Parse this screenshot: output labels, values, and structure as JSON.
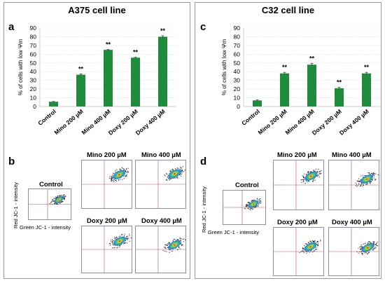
{
  "panels": [
    {
      "title": "A375 cell line",
      "chart_label": "a",
      "flow_label": "b"
    },
    {
      "title": "C32 cell line",
      "chart_label": "c",
      "flow_label": "d"
    }
  ],
  "chart_data": [
    {
      "type": "bar",
      "title": "A375 cell line",
      "xlabel": "",
      "ylabel": "% of cells with low Ψm",
      "categories": [
        "Control",
        "Mino 200 µM",
        "Mino 400 µM",
        "Doxy 200 µM",
        "Doxy 400 µM"
      ],
      "values": [
        5.5,
        36.5,
        65,
        56,
        80
      ],
      "errors": [
        0.3,
        1,
        0.6,
        0.6,
        1.2
      ],
      "significance": [
        "",
        "**",
        "**",
        "**",
        "**"
      ],
      "ylim": [
        0,
        90
      ],
      "yticks": [
        0,
        10,
        20,
        30,
        40,
        50,
        60,
        70,
        80,
        90
      ],
      "grid": true,
      "color": "#1e8c3a"
    },
    {
      "type": "bar",
      "title": "C32 cell line",
      "xlabel": "",
      "ylabel": "% of cells with low Ψm",
      "categories": [
        "Control",
        "Mino 200 µM",
        "Mino 400 µM",
        "Doxy 200 µM",
        "Doxy 400 µM"
      ],
      "values": [
        7,
        38,
        48,
        21,
        38
      ],
      "errors": [
        0.5,
        1.2,
        1.5,
        1,
        1.2
      ],
      "significance": [
        "",
        "**",
        "**",
        "**",
        "**"
      ],
      "ylim": [
        0,
        90
      ],
      "yticks": [
        0,
        10,
        20,
        30,
        40,
        50,
        60,
        70,
        80,
        90
      ],
      "grid": true,
      "color": "#1e8c3a"
    }
  ],
  "flow": {
    "y_label": "Red JC-1 - intensity",
    "x_label": "Green JC-1 - intensity",
    "left": [
      {
        "title": "Control"
      },
      {
        "title": "Mino 200 µM"
      },
      {
        "title": "Mino 400 µM"
      },
      {
        "title": "Doxy 200 µM"
      },
      {
        "title": "Doxy 400 µM"
      }
    ],
    "right": [
      {
        "title": "Control"
      },
      {
        "title": "Mino 200 µM"
      },
      {
        "title": "Mino 400 µM"
      },
      {
        "title": "Doxy 200 µM"
      },
      {
        "title": "Doxy 400 µM"
      }
    ]
  },
  "colors": {
    "bar": "#1e8c3a",
    "frame": "#8a8ab4",
    "gate": "#c0504d"
  }
}
